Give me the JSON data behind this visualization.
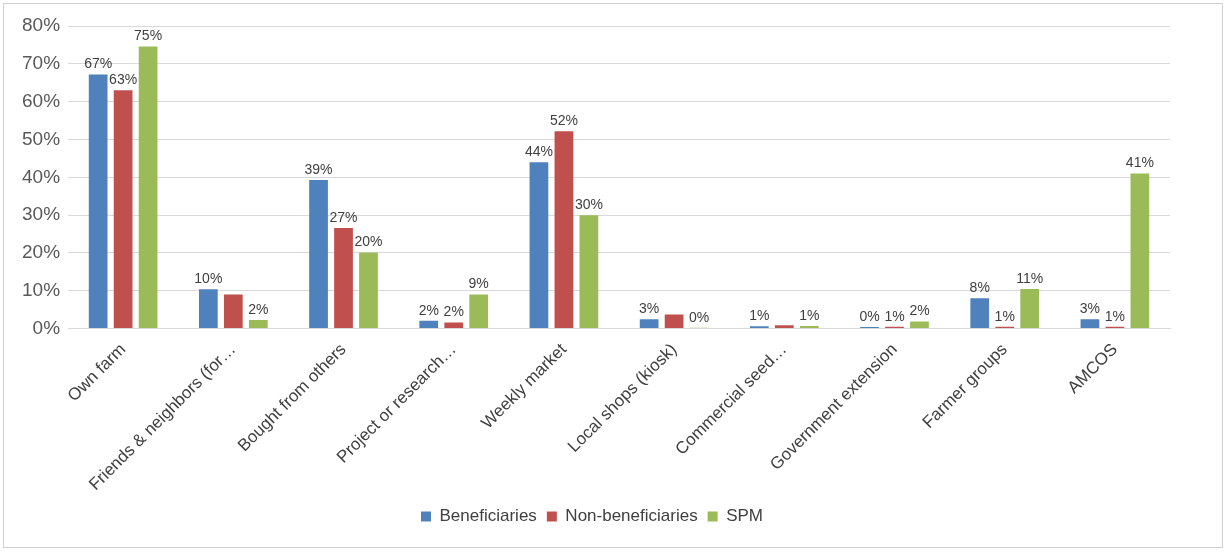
{
  "chart_data": {
    "type": "bar",
    "categories": [
      "Own farm",
      "Friends & neighbors (for…",
      "Bought from others",
      "Project or research…",
      "Weekly market",
      "Local shops (kiosk)",
      "Commercial seed…",
      "Government extension",
      "Farmer groups",
      "AMCOS"
    ],
    "series": [
      {
        "name": "Beneficiaries",
        "color": "#4f81bd",
        "values": [
          67.2,
          10.4,
          39.3,
          2.1,
          44,
          2.5,
          0.6,
          0.4,
          8,
          2.5
        ],
        "value_labels": [
          "67%",
          "10%",
          "39%",
          "2%",
          "44%",
          "3%",
          "1%",
          "0%",
          "8%",
          "3%"
        ]
      },
      {
        "name": "Non-beneficiaries",
        "color": "#c0504d",
        "values": [
          63,
          9,
          26.6,
          1.6,
          52.2,
          3.7,
          0.9,
          0.5,
          0.5,
          0.5
        ],
        "value_labels": [
          "63%",
          null,
          "27%",
          "2%",
          "52%",
          null,
          null,
          "1%",
          "1%",
          "1%"
        ]
      },
      {
        "name": "SPM",
        "color": "#9bbb59",
        "values": [
          74.6,
          2.3,
          20.1,
          9,
          30,
          0.2,
          0.7,
          1.9,
          10.5,
          41
        ],
        "value_labels": [
          "75%",
          "2%",
          "20%",
          "9%",
          "30%",
          "0%",
          "1%",
          "2%",
          "11%",
          "41%"
        ]
      }
    ],
    "ylim": [
      0,
      80
    ],
    "yticks": [
      {
        "value": 0,
        "label": "0%"
      },
      {
        "value": 10,
        "label": "10%"
      },
      {
        "value": 20,
        "label": "20%"
      },
      {
        "value": 30,
        "label": "30%"
      },
      {
        "value": 40,
        "label": "40%"
      },
      {
        "value": 50,
        "label": "50%"
      },
      {
        "value": 60,
        "label": "60%"
      },
      {
        "value": 70,
        "label": "70%"
      },
      {
        "value": 80,
        "label": "80%"
      }
    ],
    "grid": "y",
    "legend": "bottom"
  }
}
